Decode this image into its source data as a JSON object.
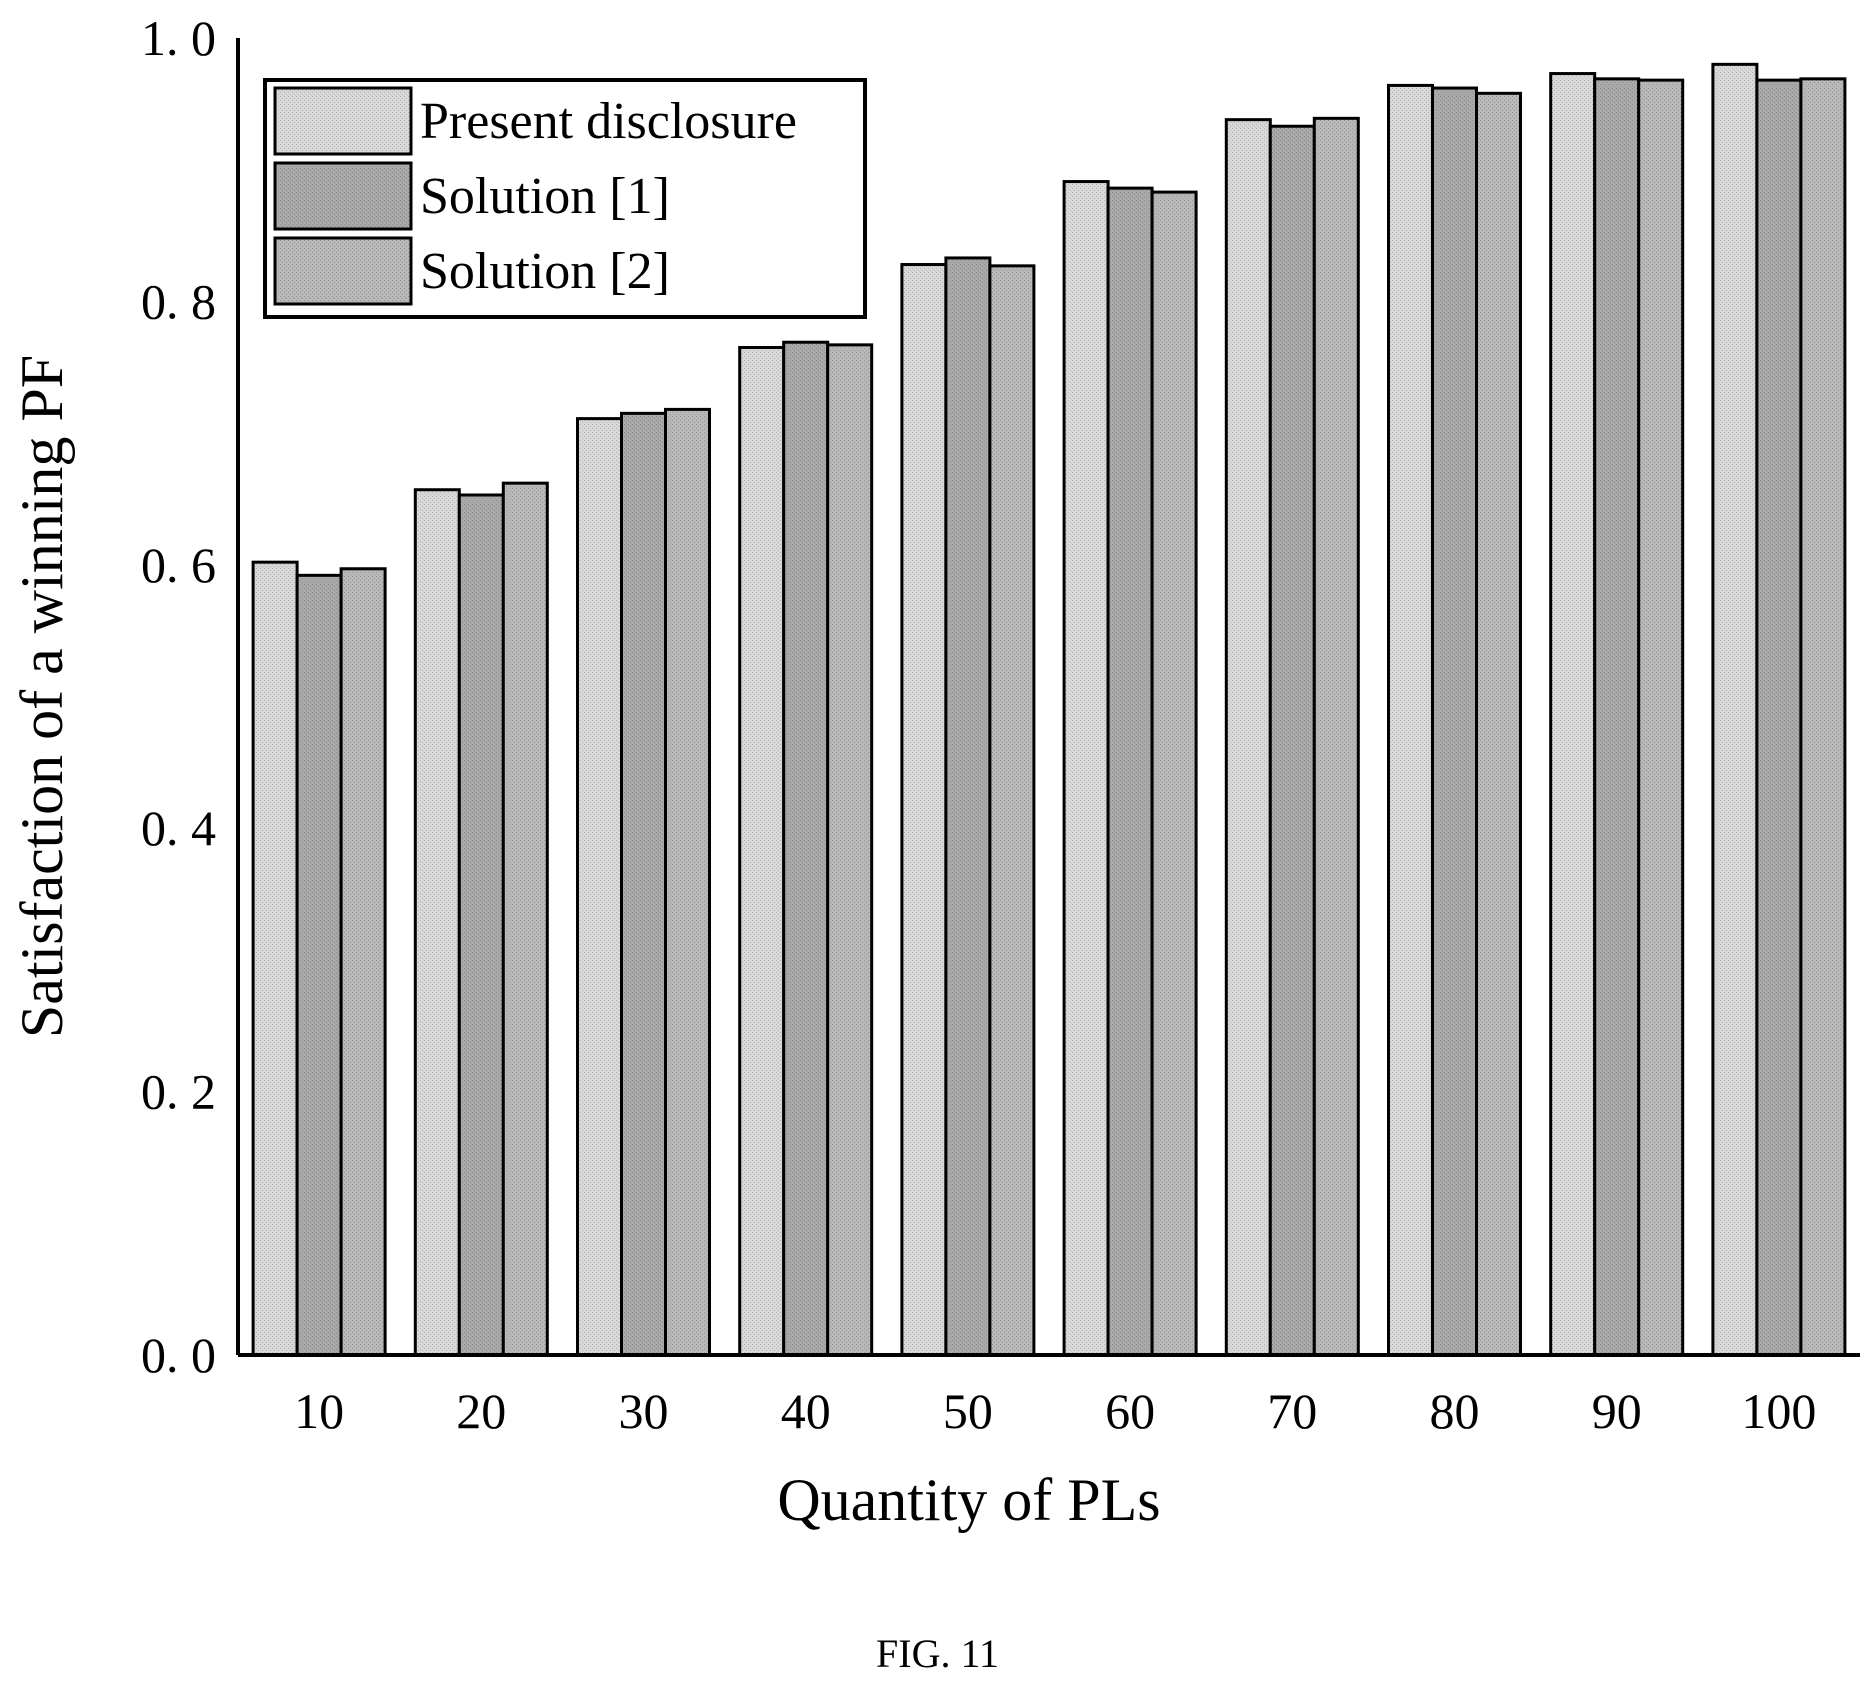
{
  "chart_data": {
    "type": "bar",
    "title": "",
    "xlabel": "Quantity of PLs",
    "ylabel": "Satisfaction of a winning PF",
    "categories": [
      "10",
      "20",
      "30",
      "40",
      "50",
      "60",
      "70",
      "80",
      "90",
      "100"
    ],
    "yticks": [
      "0. 0",
      "0. 2",
      "0. 4",
      "0. 6",
      "0. 8",
      "1. 0"
    ],
    "ylim": [
      0,
      1.0
    ],
    "grid": false,
    "legend_position": "top-left",
    "series": [
      {
        "name": "Present disclosure",
        "color": "#d8d8d8",
        "values": [
          0.602,
          0.657,
          0.711,
          0.765,
          0.828,
          0.891,
          0.938,
          0.964,
          0.973,
          0.98
        ]
      },
      {
        "name": "Solution [1]",
        "color": "#a9a9a9",
        "values": [
          0.592,
          0.653,
          0.715,
          0.769,
          0.833,
          0.886,
          0.933,
          0.962,
          0.969,
          0.968
        ]
      },
      {
        "name": "Solution [2]",
        "color": "#b8b8b8",
        "values": [
          0.597,
          0.662,
          0.718,
          0.767,
          0.827,
          0.883,
          0.939,
          0.958,
          0.968,
          0.969
        ]
      }
    ]
  },
  "caption": "FIG. 11"
}
